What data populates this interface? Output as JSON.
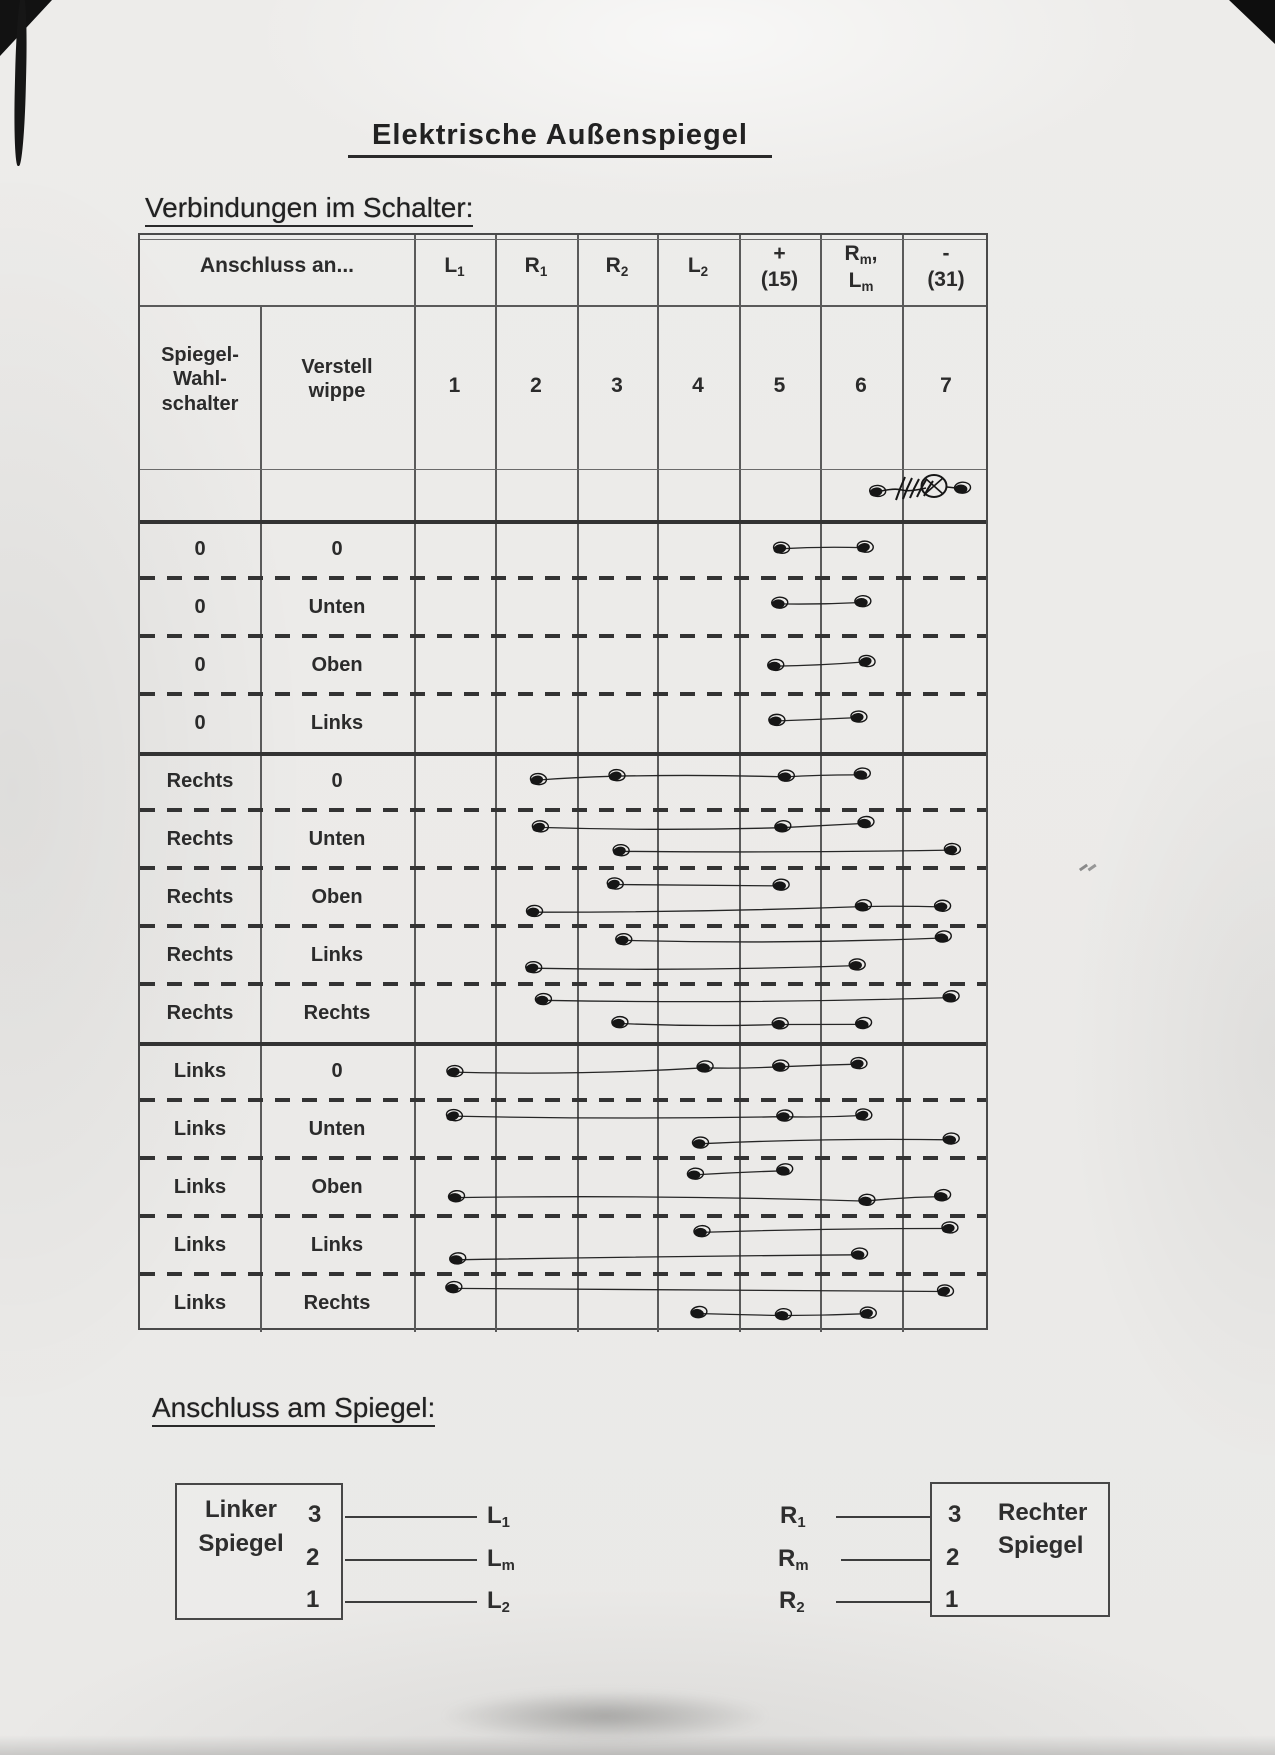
{
  "page": {
    "title": "Elektrische Außenspiegel",
    "section1_heading": "Verbindungen im Schalter:",
    "section2_heading": "Anschluss am Spiegel:"
  },
  "colors": {
    "ink": "#161616",
    "line": "#5a5a5a",
    "text": "#2b2b2b"
  },
  "table": {
    "corner_label": "Anschluss an...",
    "col_headers": [
      "L_1",
      "R_1",
      "R_2",
      "L_2",
      "+\n(15)",
      "R_m,\nL_m",
      "-\n(31)"
    ],
    "subheader": {
      "selector_label": "Spiegel-\nWahl-\nschalter",
      "rocker_label": "Verstell\nwippe",
      "terminal_numbers": [
        "1",
        "2",
        "3",
        "4",
        "5",
        "6",
        "7"
      ]
    },
    "annotation": {
      "type": "motor-symbol-doodle",
      "between_terminals": [
        6,
        7
      ]
    },
    "rows": [
      {
        "selector": "0",
        "rocker": "0",
        "group": 0,
        "chains": [
          [
            5,
            6
          ]
        ]
      },
      {
        "selector": "0",
        "rocker": "Unten",
        "group": 0,
        "chains": [
          [
            5,
            6
          ]
        ]
      },
      {
        "selector": "0",
        "rocker": "Oben",
        "group": 0,
        "chains": [
          [
            5,
            6
          ]
        ]
      },
      {
        "selector": "0",
        "rocker": "Links",
        "group": 0,
        "chains": [
          [
            5,
            6
          ]
        ]
      },
      {
        "selector": "Rechts",
        "rocker": "0",
        "group": 1,
        "chains": [
          [
            2,
            3,
            5,
            6
          ]
        ]
      },
      {
        "selector": "Rechts",
        "rocker": "Unten",
        "group": 1,
        "chains": [
          [
            2,
            5,
            6
          ],
          [
            3,
            7
          ]
        ]
      },
      {
        "selector": "Rechts",
        "rocker": "Oben",
        "group": 1,
        "chains": [
          [
            3,
            5
          ],
          [
            2,
            6,
            7
          ]
        ]
      },
      {
        "selector": "Rechts",
        "rocker": "Links",
        "group": 1,
        "chains": [
          [
            3,
            7
          ],
          [
            2,
            6
          ]
        ]
      },
      {
        "selector": "Rechts",
        "rocker": "Rechts",
        "group": 1,
        "chains": [
          [
            2,
            7
          ],
          [
            3,
            5,
            6
          ]
        ]
      },
      {
        "selector": "Links",
        "rocker": "0",
        "group": 2,
        "chains": [
          [
            1,
            4,
            5,
            6
          ]
        ]
      },
      {
        "selector": "Links",
        "rocker": "Unten",
        "group": 2,
        "chains": [
          [
            1,
            5,
            6
          ],
          [
            4,
            7
          ]
        ]
      },
      {
        "selector": "Links",
        "rocker": "Oben",
        "group": 2,
        "chains": [
          [
            4,
            5
          ],
          [
            1,
            6,
            7
          ]
        ]
      },
      {
        "selector": "Links",
        "rocker": "Links",
        "group": 2,
        "chains": [
          [
            4,
            7
          ],
          [
            1,
            6
          ]
        ]
      },
      {
        "selector": "Links",
        "rocker": "Rechts",
        "group": 2,
        "chains": [
          [
            1,
            7
          ],
          [
            4,
            5,
            6
          ]
        ]
      }
    ]
  },
  "mirror_connectors": {
    "left": {
      "title_lines": [
        "Linker",
        "Spiegel"
      ],
      "pins": [
        {
          "pin": "3",
          "wire": "L_1"
        },
        {
          "pin": "2",
          "wire": "L_m"
        },
        {
          "pin": "1",
          "wire": "L_2"
        }
      ]
    },
    "right": {
      "title_lines": [
        "Rechter",
        "Spiegel"
      ],
      "pins": [
        {
          "pin": "3",
          "wire": "R_1"
        },
        {
          "pin": "2",
          "wire": "R_m"
        },
        {
          "pin": "1",
          "wire": "R_2"
        }
      ]
    }
  }
}
